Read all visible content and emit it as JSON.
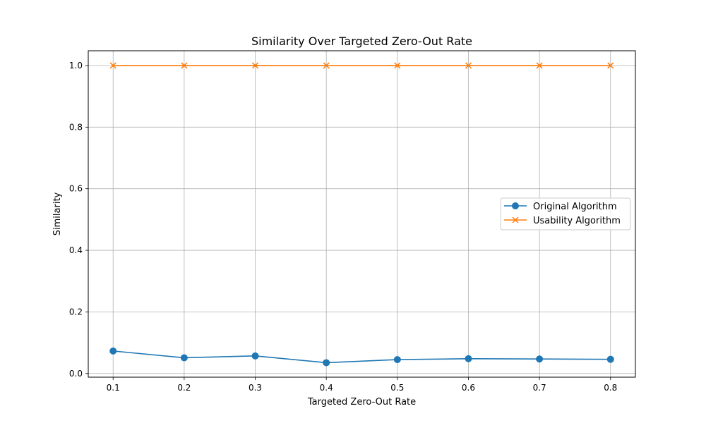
{
  "chart_data": {
    "type": "line",
    "title": "Similarity Over Targeted Zero-Out Rate",
    "xlabel": "Targeted Zero-Out Rate",
    "ylabel": "Similarity",
    "x": [
      0.1,
      0.2,
      0.3,
      0.4,
      0.5,
      0.6,
      0.7,
      0.8
    ],
    "xlim": [
      0.065,
      0.835
    ],
    "ylim": [
      -0.012,
      1.048
    ],
    "xticks": [
      "0.1",
      "0.2",
      "0.3",
      "0.4",
      "0.5",
      "0.6",
      "0.7",
      "0.8"
    ],
    "yticks": [
      "0.0",
      "0.2",
      "0.4",
      "0.6",
      "0.8",
      "1.0"
    ],
    "grid": true,
    "legend_position": "center-right",
    "series": [
      {
        "name": "Original Algorithm",
        "marker": "circle",
        "color": "#1f77b4",
        "values": [
          0.073,
          0.051,
          0.057,
          0.035,
          0.045,
          0.048,
          0.047,
          0.046
        ]
      },
      {
        "name": "Usability Algorithm",
        "marker": "x",
        "color": "#ff7f0e",
        "values": [
          1.0,
          1.0,
          1.0,
          1.0,
          1.0,
          1.0,
          1.0,
          1.0
        ]
      }
    ]
  }
}
